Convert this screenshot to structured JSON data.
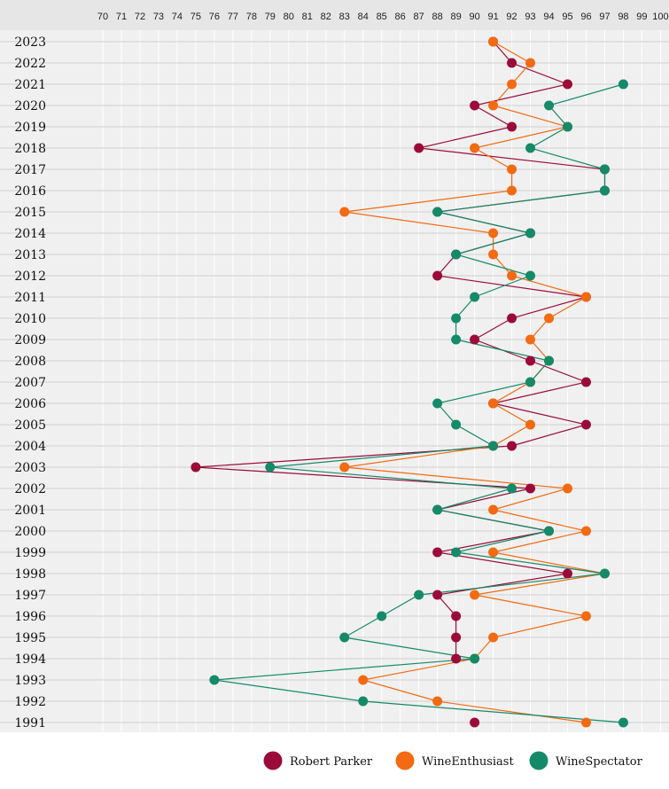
{
  "chart_data": {
    "type": "line",
    "orientation": "horizontal-dot-line",
    "title": "",
    "xlabel": "",
    "ylabel": "",
    "x_ticks": [
      70,
      71,
      72,
      73,
      74,
      75,
      76,
      77,
      78,
      79,
      80,
      81,
      82,
      83,
      84,
      85,
      86,
      87,
      88,
      89,
      90,
      91,
      92,
      93,
      94,
      95,
      96,
      97,
      98,
      99,
      100
    ],
    "xlim": [
      70,
      100
    ],
    "categories": [
      "2023",
      "2022",
      "2021",
      "2020",
      "2019",
      "2018",
      "2017",
      "2016",
      "2015",
      "2014",
      "2013",
      "2012",
      "2011",
      "2010",
      "2009",
      "2008",
      "2007",
      "2006",
      "2005",
      "2004",
      "2003",
      "2002",
      "2001",
      "2000",
      "1999",
      "1998",
      "1997",
      "1996",
      "1995",
      "1994",
      "1993",
      "1992",
      "1991"
    ],
    "grid": true,
    "legend_position": "bottom",
    "series": [
      {
        "name": "Robert Parker",
        "color": "#9b0b3a",
        "values": [
          91,
          92,
          95,
          90,
          92,
          87,
          97,
          97,
          88,
          93,
          89,
          88,
          96,
          92,
          90,
          93,
          96,
          91,
          96,
          92,
          75,
          93,
          88,
          94,
          88,
          95,
          88,
          89,
          89,
          89,
          null,
          null,
          90
        ]
      },
      {
        "name": "WineEnthusiast",
        "color": "#f26a12",
        "values": [
          91,
          93,
          92,
          91,
          95,
          90,
          92,
          92,
          83,
          91,
          91,
          92,
          96,
          94,
          93,
          94,
          93,
          91,
          93,
          91,
          83,
          95,
          91,
          96,
          91,
          97,
          90,
          96,
          91,
          90,
          84,
          88,
          96
        ]
      },
      {
        "name": "WineSpectator",
        "color": "#148a68",
        "values": [
          null,
          null,
          98,
          94,
          95,
          93,
          97,
          97,
          88,
          93,
          89,
          93,
          90,
          89,
          89,
          94,
          93,
          88,
          89,
          91,
          79,
          92,
          88,
          94,
          89,
          97,
          87,
          85,
          83,
          90,
          76,
          84,
          98
        ]
      }
    ]
  }
}
